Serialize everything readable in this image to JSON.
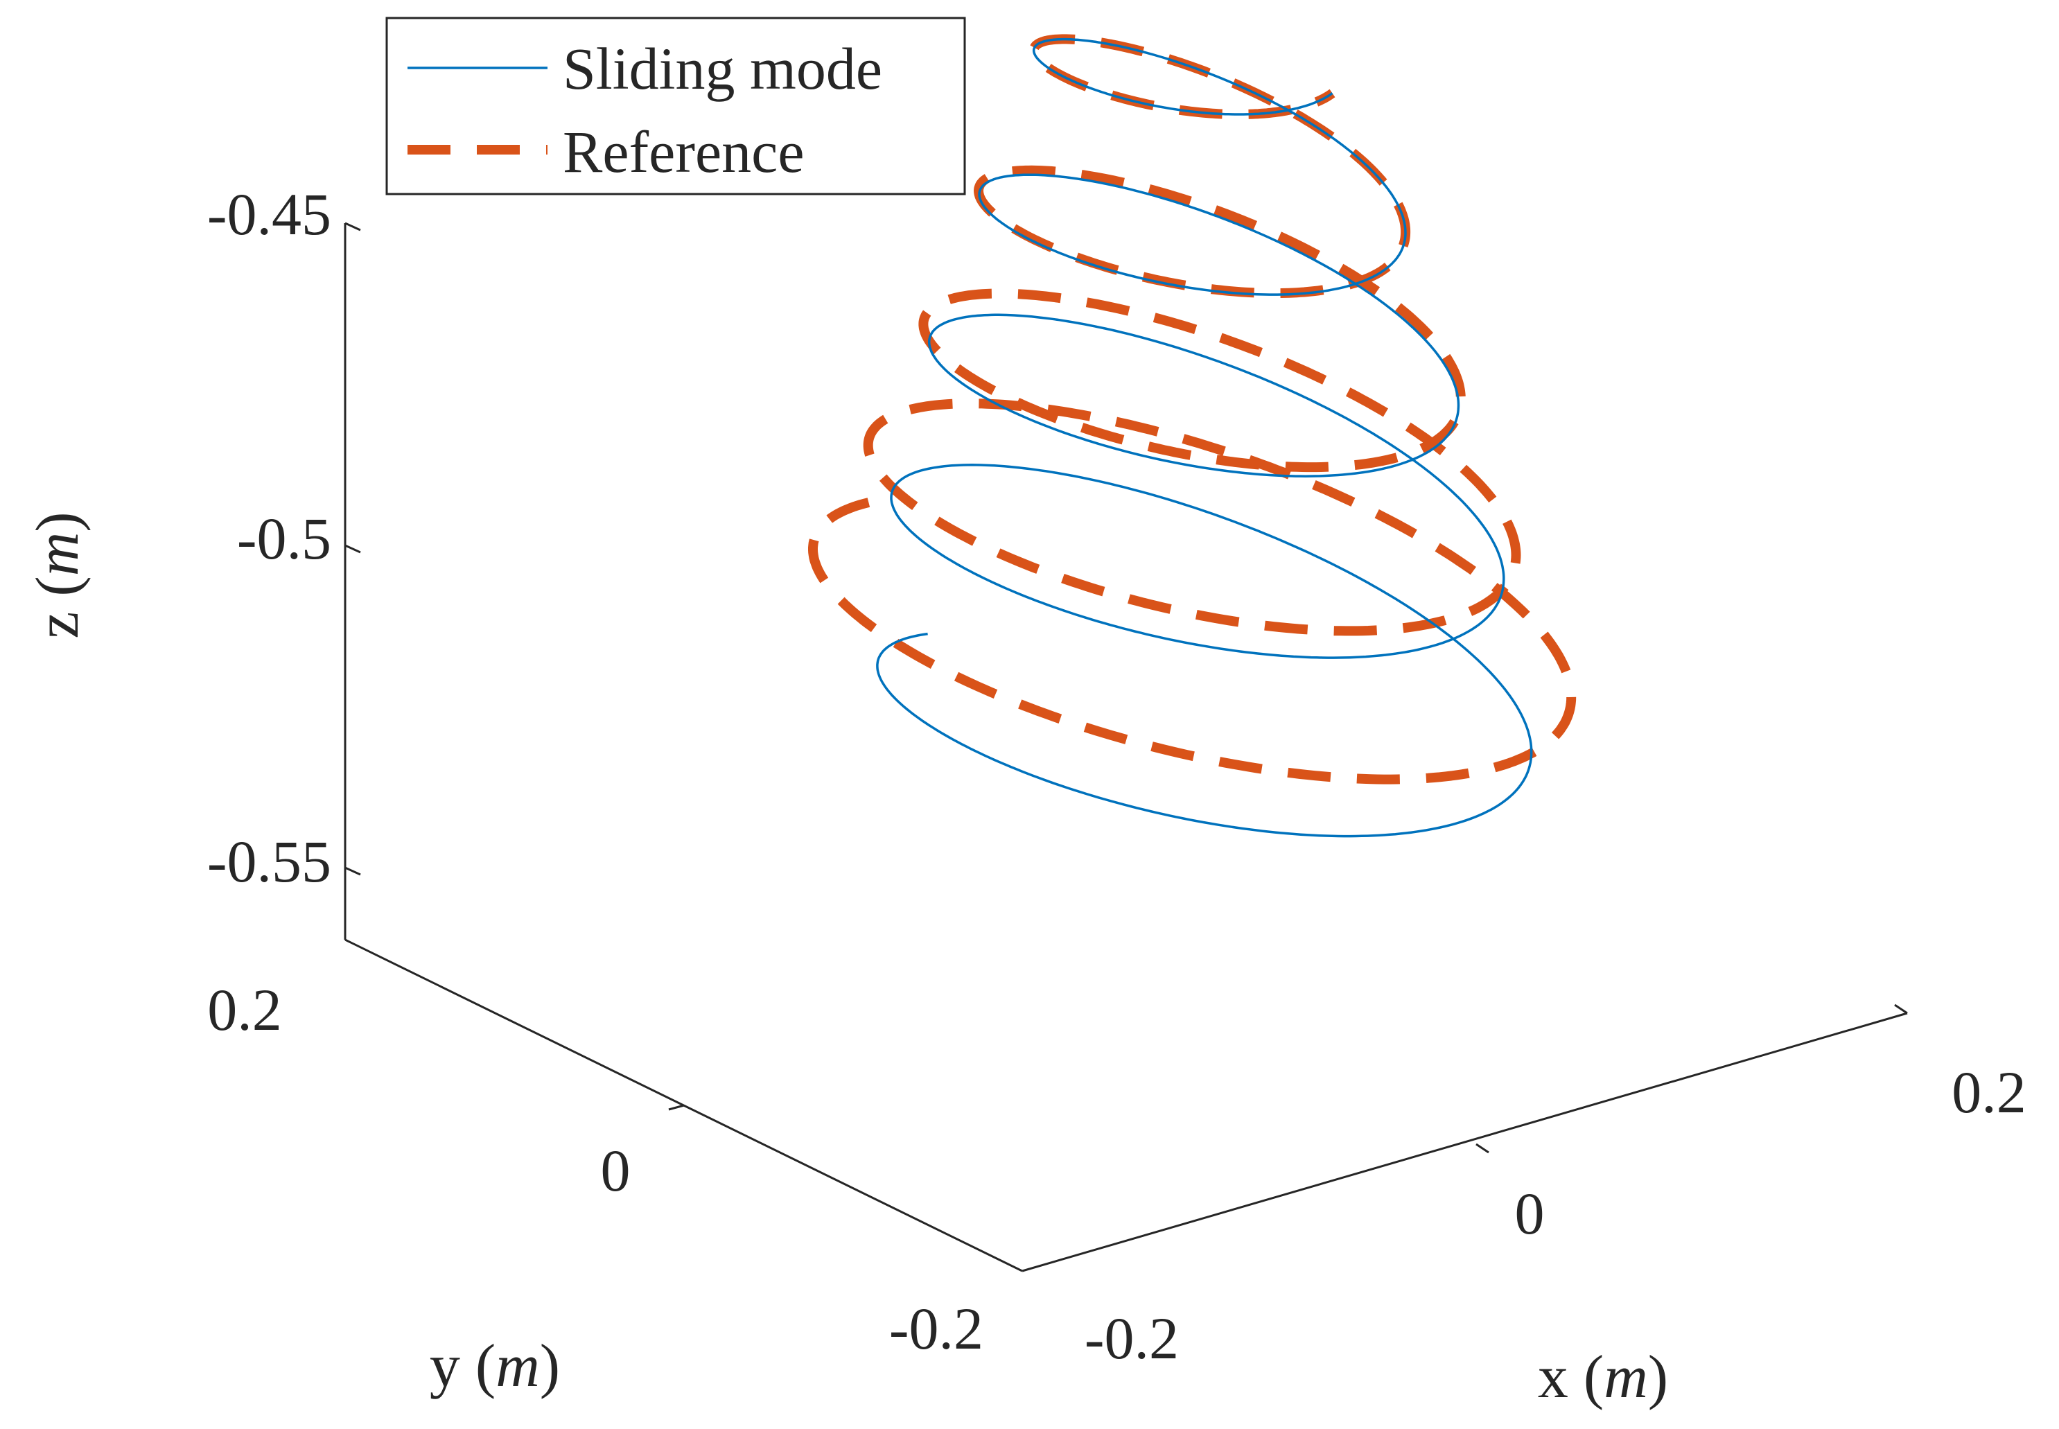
{
  "chart_data": {
    "type": "line",
    "projection": "3d",
    "xlabel": "x",
    "xunit": "m",
    "ylabel": "y",
    "yunit": "m",
    "zlabel": "z",
    "zunit": "m",
    "xlim": [
      -0.2,
      0.2
    ],
    "ylim": [
      -0.2,
      0.2
    ],
    "zlim": [
      -0.56,
      -0.45
    ],
    "x_ticks": [
      "-0.2",
      "0",
      "0.2"
    ],
    "y_ticks": [
      "-0.2",
      "0",
      "0.2"
    ],
    "z_ticks": [
      "-0.45",
      "-0.5",
      "-0.55"
    ],
    "grid": false,
    "legend_position": "top-left",
    "helix": {
      "turns": 4.5,
      "radius_start": 0.2,
      "radius_end": 0.075,
      "z_start": -0.56,
      "z_end": -0.45
    },
    "series": [
      {
        "name": "Sliding mode",
        "color": "#0072BD",
        "style": "solid"
      },
      {
        "name": "Reference",
        "color": "#D95319",
        "style": "dashed"
      }
    ]
  }
}
